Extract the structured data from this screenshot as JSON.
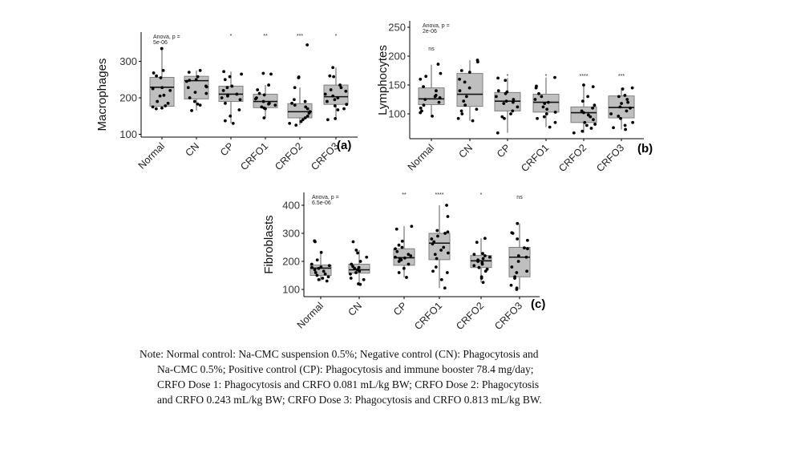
{
  "chart_data": [
    {
      "type": "box",
      "panel_label": "(a)",
      "ylabel": "Macrophages",
      "yticks": [
        100,
        200,
        300
      ],
      "ylim": [
        95,
        360
      ],
      "anova_text": [
        "Anova, p =",
        "5e-06"
      ],
      "categories": [
        "Normal",
        "CN",
        "CP",
        "CRFO1",
        "CRFO2",
        "CRFO3"
      ],
      "significance": [
        "",
        "",
        "*",
        "**",
        "***",
        "*"
      ],
      "boxes": [
        {
          "q1": 177,
          "median": 229,
          "q3": 256,
          "whisker_low": 170,
          "whisker_high": 335
        },
        {
          "q1": 197,
          "median": 247,
          "q3": 259,
          "whisker_low": 165,
          "whisker_high": 275
        },
        {
          "q1": 190,
          "median": 210,
          "q3": 232,
          "whisker_low": 130,
          "whisker_high": 272
        },
        {
          "q1": 173,
          "median": 190,
          "q3": 210,
          "whisker_low": 145,
          "whisker_high": 235
        },
        {
          "q1": 145,
          "median": 162,
          "q3": 184,
          "whisker_low": 125,
          "whisker_high": 228
        },
        {
          "q1": 182,
          "median": 203,
          "q3": 235,
          "whisker_low": 140,
          "whisker_high": 283
        }
      ],
      "points": [
        [
          335,
          275,
          268,
          260,
          255,
          228,
          225,
          220,
          207,
          205,
          190,
          185,
          178,
          175,
          172,
          170
        ],
        [
          275,
          270,
          258,
          250,
          248,
          245,
          232,
          230,
          228,
          215,
          212,
          200,
          190,
          183,
          180,
          165
        ],
        [
          272,
          265,
          258,
          250,
          232,
          228,
          220,
          210,
          208,
          205,
          200,
          195,
          185,
          167,
          150,
          137,
          130
        ],
        [
          267,
          265,
          235,
          222,
          212,
          208,
          200,
          197,
          190,
          185,
          183,
          180,
          175,
          172,
          170,
          145
        ],
        [
          345,
          257,
          255,
          228,
          195,
          190,
          185,
          180,
          175,
          170,
          162,
          158,
          150,
          145,
          140,
          135,
          130,
          125
        ],
        [
          283,
          260,
          258,
          235,
          228,
          222,
          218,
          210,
          205,
          200,
          195,
          190,
          182,
          178,
          170,
          167,
          143,
          140
        ]
      ]
    },
    {
      "type": "box",
      "panel_label": "(b)",
      "ylabel": "Lymphocytes",
      "yticks": [
        100,
        150,
        200,
        250
      ],
      "ylim": [
        58,
        255
      ],
      "anova_text": [
        "Anova, p =",
        "2e-06"
      ],
      "categories": [
        "Normal",
        "CN",
        "CP",
        "CRFO1",
        "CRFO2",
        "CRFO3"
      ],
      "significance": [
        "ns",
        "",
        "*",
        "*",
        "****",
        "***"
      ],
      "boxes": [
        {
          "q1": 116,
          "median": 126,
          "q3": 145,
          "whisker_low": 96,
          "whisker_high": 185
        },
        {
          "q1": 113,
          "median": 134,
          "q3": 170,
          "whisker_low": 88,
          "whisker_high": 193
        },
        {
          "q1": 105,
          "median": 122,
          "q3": 137,
          "whisker_low": 67,
          "whisker_high": 162
        },
        {
          "q1": 103,
          "median": 120,
          "q3": 134,
          "whisker_low": 77,
          "whisker_high": 163
        },
        {
          "q1": 85,
          "median": 102,
          "q3": 112,
          "whisker_low": 67,
          "whisker_high": 150
        },
        {
          "q1": 93,
          "median": 111,
          "q3": 131,
          "whisker_low": 73,
          "whisker_high": 145
        }
      ],
      "points": [
        [
          186,
          170,
          165,
          160,
          147,
          140,
          132,
          130,
          128,
          125,
          120,
          115,
          110,
          105,
          102,
          96
        ],
        [
          193,
          190,
          175,
          172,
          160,
          155,
          145,
          140,
          130,
          122,
          115,
          108,
          105,
          100,
          92,
          88
        ],
        [
          162,
          158,
          140,
          138,
          135,
          130,
          125,
          122,
          120,
          118,
          112,
          105,
          100,
          95,
          92,
          67
        ],
        [
          163,
          148,
          145,
          135,
          130,
          125,
          120,
          118,
          112,
          108,
          103,
          100,
          95,
          92,
          85,
          77
        ],
        [
          150,
          147,
          130,
          122,
          115,
          110,
          105,
          102,
          98,
          95,
          90,
          85,
          82,
          80,
          75,
          70,
          67
        ],
        [
          145,
          143,
          132,
          130,
          125,
          120,
          118,
          112,
          110,
          105,
          100,
          96,
          92,
          85,
          80,
          76,
          73
        ]
      ]
    },
    {
      "type": "box",
      "panel_label": "(c)",
      "ylabel": "Fibroblasts",
      "yticks": [
        100,
        200,
        300,
        400
      ],
      "ylim": [
        75,
        430
      ],
      "anova_text": [
        "Anova, p =",
        "6.5e-06"
      ],
      "categories": [
        "Normal",
        "CN",
        "CP",
        "CRFO1",
        "CRFO2",
        "CRFO3"
      ],
      "significance": [
        "",
        "",
        "**",
        "****",
        "*",
        "ns"
      ],
      "boxes": [
        {
          "q1": 150,
          "median": 176,
          "q3": 187,
          "whisker_low": 130,
          "whisker_high": 230
        },
        {
          "q1": 158,
          "median": 170,
          "q3": 190,
          "whisker_low": 118,
          "whisker_high": 240
        },
        {
          "q1": 186,
          "median": 213,
          "q3": 245,
          "whisker_low": 143,
          "whisker_high": 325
        },
        {
          "q1": 206,
          "median": 265,
          "q3": 300,
          "whisker_low": 105,
          "whisker_high": 400
        },
        {
          "q1": 178,
          "median": 202,
          "q3": 221,
          "whisker_low": 125,
          "whisker_high": 282
        },
        {
          "q1": 145,
          "median": 215,
          "q3": 250,
          "whisker_low": 100,
          "whisker_high": 335
        }
      ],
      "points": [
        [
          273,
          270,
          232,
          205,
          190,
          185,
          180,
          178,
          175,
          170,
          165,
          160,
          155,
          150,
          145,
          140,
          135,
          130
        ],
        [
          270,
          240,
          230,
          215,
          200,
          190,
          182,
          178,
          175,
          170,
          165,
          160,
          155,
          140,
          135,
          120,
          118
        ],
        [
          325,
          315,
          272,
          258,
          250,
          245,
          235,
          225,
          220,
          215,
          212,
          210,
          205,
          200,
          190,
          175,
          160,
          143
        ],
        [
          400,
          360,
          310,
          305,
          300,
          290,
          280,
          270,
          262,
          250,
          240,
          230,
          225,
          210,
          180,
          165,
          160,
          135,
          105
        ],
        [
          282,
          268,
          228,
          225,
          220,
          215,
          210,
          205,
          200,
          195,
          190,
          185,
          178,
          172,
          165,
          145,
          140,
          125
        ],
        [
          335,
          302,
          300,
          280,
          275,
          248,
          245,
          220,
          215,
          200,
          180,
          165,
          160,
          145,
          140,
          115,
          105,
          100
        ]
      ]
    }
  ],
  "note": {
    "lines": [
      "Note: Normal control: Na-CMC suspension 0.5%; Negative control (CN): Phagocytosis and",
      "Na-CMC 0.5%; Positive control (CP): Phagocytosis and  immune booster 78.4 mg/day;",
      "CRFO Dose 1: Phagocytosis and CRFO 0.081 mL/kg BW; CRFO Dose 2: Phagocytosis",
      "and CRFO 0.243 mL/kg BW;  CRFO Dose 3: Phagocytosis and CRFO 0.813 mL/kg BW."
    ]
  },
  "colors": {
    "box_fill": "#bfbfbf",
    "box_stroke": "#7f7f7f",
    "point": "#000000",
    "axis": "#000000"
  }
}
